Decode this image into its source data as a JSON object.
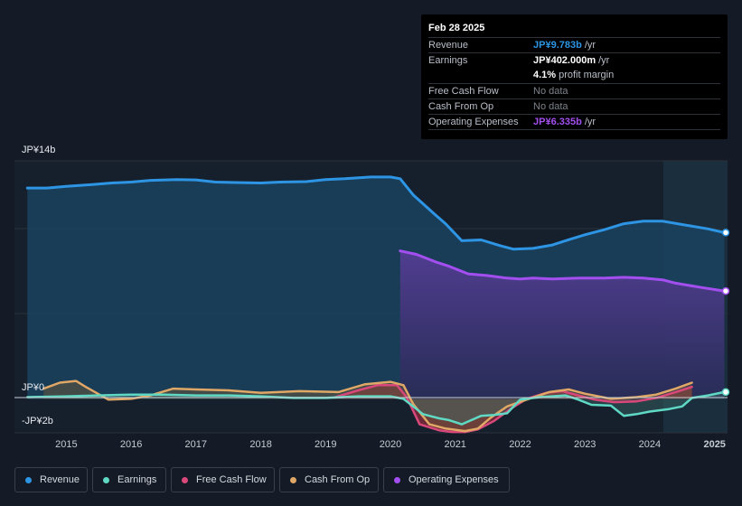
{
  "tooltip": {
    "date": "Feb 28 2025",
    "rows": [
      {
        "label": "Revenue",
        "value": "JP¥9.783b",
        "unit": "/yr",
        "color": "#2d95e3"
      },
      {
        "label": "Earnings",
        "value": "JP¥402.000m",
        "unit": "/yr",
        "color": "#ffffff"
      },
      {
        "label": "",
        "value": "4.1%",
        "unit": "profit margin",
        "color": "#ffffff"
      },
      {
        "label": "Free Cash Flow",
        "value": "No data",
        "unit": "",
        "color": "#7d828b"
      },
      {
        "label": "Cash From Op",
        "value": "No data",
        "unit": "",
        "color": "#7d828b"
      },
      {
        "label": "Operating Expenses",
        "value": "JP¥6.335b",
        "unit": "/yr",
        "color": "#a34ff0"
      }
    ]
  },
  "colors": {
    "revenue": "#2d95e3",
    "earnings": "#5fd9c4",
    "fcf": "#d9487a",
    "cfo": "#e0a866",
    "opex": "#a34ff0"
  },
  "legend": [
    {
      "name": "Revenue",
      "color": "#2d95e3"
    },
    {
      "name": "Earnings",
      "color": "#5fd9c4"
    },
    {
      "name": "Free Cash Flow",
      "color": "#d9487a"
    },
    {
      "name": "Cash From Op",
      "color": "#e0a866"
    },
    {
      "name": "Operating Expenses",
      "color": "#a34ff0"
    }
  ],
  "chart_data": {
    "type": "area",
    "y_labels": [
      "JP¥14b",
      "JP¥0",
      "-JP¥2b"
    ],
    "ylim": [
      -2,
      14
    ],
    "xlim": [
      2014.2,
      2025.2
    ],
    "x_ticks": [
      "2015",
      "2016",
      "2017",
      "2018",
      "2019",
      "2020",
      "2021",
      "2022",
      "2023",
      "2024",
      "2025"
    ],
    "series": [
      {
        "name": "Revenue",
        "key": "revenue",
        "points": [
          [
            2014.4,
            12.4
          ],
          [
            2014.7,
            12.4
          ],
          [
            2015.0,
            12.5
          ],
          [
            2015.4,
            12.6
          ],
          [
            2015.7,
            12.7
          ],
          [
            2016.0,
            12.75
          ],
          [
            2016.3,
            12.85
          ],
          [
            2016.7,
            12.9
          ],
          [
            2017.0,
            12.88
          ],
          [
            2017.3,
            12.75
          ],
          [
            2017.7,
            12.72
          ],
          [
            2018.0,
            12.7
          ],
          [
            2018.3,
            12.75
          ],
          [
            2018.7,
            12.78
          ],
          [
            2019.0,
            12.9
          ],
          [
            2019.3,
            12.95
          ],
          [
            2019.7,
            13.05
          ],
          [
            2020.0,
            13.05
          ],
          [
            2020.15,
            12.95
          ],
          [
            2020.35,
            12.0
          ],
          [
            2020.7,
            10.8
          ],
          [
            2020.85,
            10.3
          ],
          [
            2021.1,
            9.3
          ],
          [
            2021.4,
            9.35
          ],
          [
            2021.7,
            9.0
          ],
          [
            2021.9,
            8.8
          ],
          [
            2022.2,
            8.85
          ],
          [
            2022.5,
            9.05
          ],
          [
            2022.7,
            9.3
          ],
          [
            2023.0,
            9.65
          ],
          [
            2023.3,
            9.95
          ],
          [
            2023.6,
            10.3
          ],
          [
            2023.9,
            10.45
          ],
          [
            2024.2,
            10.45
          ],
          [
            2024.5,
            10.25
          ],
          [
            2024.9,
            10.0
          ],
          [
            2025.15,
            9.78
          ]
        ]
      },
      {
        "name": "Operating Expenses",
        "key": "opex",
        "points": [
          [
            2020.15,
            8.7
          ],
          [
            2020.4,
            8.5
          ],
          [
            2020.7,
            8.05
          ],
          [
            2020.9,
            7.8
          ],
          [
            2021.2,
            7.35
          ],
          [
            2021.5,
            7.25
          ],
          [
            2021.8,
            7.1
          ],
          [
            2022.0,
            7.05
          ],
          [
            2022.2,
            7.1
          ],
          [
            2022.5,
            7.05
          ],
          [
            2022.9,
            7.1
          ],
          [
            2023.3,
            7.1
          ],
          [
            2023.6,
            7.15
          ],
          [
            2023.9,
            7.1
          ],
          [
            2024.2,
            7.0
          ],
          [
            2024.4,
            6.8
          ],
          [
            2024.8,
            6.55
          ],
          [
            2025.15,
            6.34
          ]
        ]
      },
      {
        "name": "Earnings",
        "key": "earnings",
        "points": [
          [
            2014.4,
            0.1
          ],
          [
            2015.0,
            0.15
          ],
          [
            2015.5,
            0.2
          ],
          [
            2016.0,
            0.25
          ],
          [
            2016.5,
            0.25
          ],
          [
            2017.0,
            0.2
          ],
          [
            2017.5,
            0.2
          ],
          [
            2018.0,
            0.15
          ],
          [
            2018.5,
            0.05
          ],
          [
            2019.0,
            0.05
          ],
          [
            2019.5,
            0.15
          ],
          [
            2020.0,
            0.15
          ],
          [
            2020.2,
            0.0
          ],
          [
            2020.5,
            -0.9
          ],
          [
            2020.75,
            -1.15
          ],
          [
            2020.9,
            -1.25
          ],
          [
            2021.1,
            -1.5
          ],
          [
            2021.4,
            -1.0
          ],
          [
            2021.6,
            -0.95
          ],
          [
            2021.8,
            -0.85
          ],
          [
            2022.0,
            -0.05
          ],
          [
            2022.3,
            0.1
          ],
          [
            2022.7,
            0.2
          ],
          [
            2022.9,
            -0.05
          ],
          [
            2023.1,
            -0.35
          ],
          [
            2023.4,
            -0.4
          ],
          [
            2023.6,
            -1.0
          ],
          [
            2023.8,
            -0.9
          ],
          [
            2024.0,
            -0.75
          ],
          [
            2024.3,
            -0.6
          ],
          [
            2024.5,
            -0.45
          ],
          [
            2024.65,
            0.05
          ],
          [
            2024.9,
            0.2
          ],
          [
            2025.15,
            0.4
          ]
        ]
      },
      {
        "name": "Free Cash Flow",
        "key": "fcf",
        "points": [
          [
            2019.15,
            0.1
          ],
          [
            2019.5,
            0.5
          ],
          [
            2019.8,
            0.8
          ],
          [
            2020.1,
            0.8
          ],
          [
            2020.25,
            0.1
          ],
          [
            2020.45,
            -1.5
          ],
          [
            2020.75,
            -1.85
          ],
          [
            2020.95,
            -1.95
          ],
          [
            2021.15,
            -1.95
          ],
          [
            2021.35,
            -1.8
          ],
          [
            2021.6,
            -1.3
          ],
          [
            2021.85,
            -0.6
          ],
          [
            2022.1,
            0.0
          ],
          [
            2022.4,
            0.35
          ],
          [
            2022.65,
            0.45
          ],
          [
            2022.9,
            0.2
          ],
          [
            2023.15,
            -0.05
          ],
          [
            2023.45,
            -0.2
          ],
          [
            2023.8,
            -0.15
          ],
          [
            2024.1,
            0.05
          ],
          [
            2024.4,
            0.4
          ],
          [
            2024.65,
            0.7
          ]
        ]
      },
      {
        "name": "Cash From Op",
        "key": "cfo",
        "points": [
          [
            2014.65,
            0.6
          ],
          [
            2014.9,
            0.95
          ],
          [
            2015.15,
            1.05
          ],
          [
            2015.3,
            0.7
          ],
          [
            2015.65,
            -0.05
          ],
          [
            2016.0,
            0.0
          ],
          [
            2016.3,
            0.2
          ],
          [
            2016.65,
            0.6
          ],
          [
            2017.0,
            0.55
          ],
          [
            2017.5,
            0.5
          ],
          [
            2018.0,
            0.35
          ],
          [
            2018.6,
            0.45
          ],
          [
            2019.2,
            0.4
          ],
          [
            2019.6,
            0.85
          ],
          [
            2020.0,
            1.0
          ],
          [
            2020.2,
            0.8
          ],
          [
            2020.35,
            -0.3
          ],
          [
            2020.6,
            -1.5
          ],
          [
            2020.85,
            -1.75
          ],
          [
            2021.15,
            -1.9
          ],
          [
            2021.35,
            -1.75
          ],
          [
            2021.55,
            -1.1
          ],
          [
            2021.8,
            -0.45
          ],
          [
            2022.1,
            -0.05
          ],
          [
            2022.45,
            0.4
          ],
          [
            2022.75,
            0.55
          ],
          [
            2023.0,
            0.3
          ],
          [
            2023.4,
            0.0
          ],
          [
            2023.8,
            0.1
          ],
          [
            2024.1,
            0.25
          ],
          [
            2024.4,
            0.6
          ],
          [
            2024.65,
            0.95
          ]
        ]
      }
    ]
  }
}
